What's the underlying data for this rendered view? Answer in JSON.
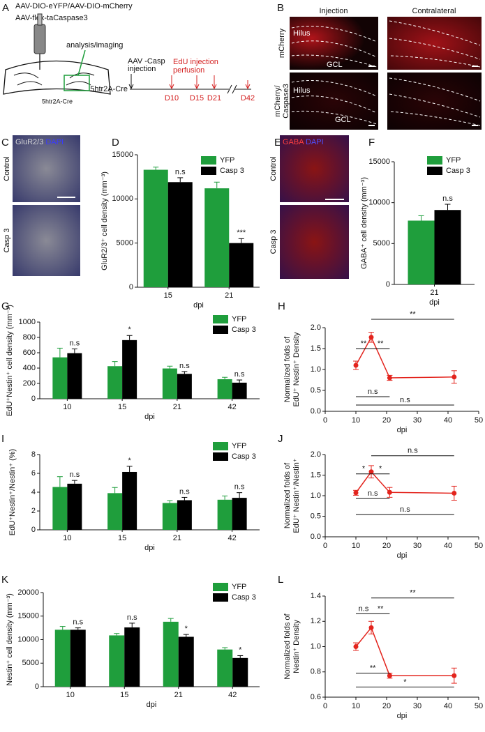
{
  "panel_a": {
    "label": "A",
    "vectors": [
      "AAV-DIO-eYFP/AAV-DIO-mCherry",
      "AAV-flex-taCaspase3"
    ],
    "imaging": "analysis/imaging",
    "mouse": "5htr2A-Cre",
    "timeline": {
      "mouse": "5htr2A-Cre",
      "start": [
        "AAV -Casp",
        "injection"
      ],
      "edu": [
        "EdU injection",
        "perfusion"
      ],
      "days": [
        "D10",
        "D15",
        "D21",
        "D42"
      ]
    }
  },
  "panel_b": {
    "label": "B",
    "columns": [
      "Injection",
      "Contralateral"
    ],
    "rows": [
      [
        "mCherry"
      ],
      [
        "mCherry/",
        "Caspase3"
      ]
    ],
    "regions": [
      "Hilus",
      "GCL"
    ]
  },
  "panel_c": {
    "label": "C",
    "stain": [
      "GluR2/3",
      "DAPI"
    ],
    "rows": [
      "Control",
      "Casp 3"
    ]
  },
  "panel_e": {
    "label": "E",
    "stain": [
      "GABA",
      "DAPI"
    ],
    "rows": [
      "Control",
      "Casp 3"
    ]
  },
  "chart_data": [
    {
      "type": "bar",
      "label": "D",
      "categories": [
        "15",
        "21"
      ],
      "series": [
        {
          "name": "YFP",
          "color": "#1f9e3c",
          "values": [
            13300,
            11200
          ],
          "errors": [
            300,
            700
          ]
        },
        {
          "name": "Casp 3",
          "color": "#000000",
          "values": [
            11900,
            5000
          ],
          "errors": [
            500,
            500
          ],
          "annotations": [
            "n.s",
            "***"
          ]
        }
      ],
      "ylim": [
        0,
        15000
      ],
      "yticks": [
        0,
        5000,
        10000,
        15000
      ],
      "ylabel": "GluR2/3⁺ cell density (mm⁻³)",
      "xlabel": "dpi",
      "legend": "upper right"
    },
    {
      "type": "bar",
      "label": "F",
      "categories": [
        "21"
      ],
      "series": [
        {
          "name": "YFP",
          "color": "#1f9e3c",
          "values": [
            7800
          ],
          "errors": [
            600
          ]
        },
        {
          "name": "Casp 3",
          "color": "#000000",
          "values": [
            9100
          ],
          "errors": [
            700
          ],
          "annotations": [
            "n.s"
          ]
        }
      ],
      "ylim": [
        0,
        15000
      ],
      "yticks": [
        0,
        5000,
        10000,
        15000
      ],
      "ylabel": "GABA⁺ cell density (mm⁻³)",
      "xlabel": "dpi",
      "legend": "upper right"
    },
    {
      "type": "bar",
      "label": "G",
      "categories": [
        "10",
        "15",
        "21",
        "42"
      ],
      "series": [
        {
          "name": "YFP",
          "color": "#1f9e3c",
          "values": [
            540,
            425,
            395,
            255
          ],
          "errors": [
            120,
            60,
            30,
            25
          ]
        },
        {
          "name": "Casp 3",
          "color": "#000000",
          "values": [
            595,
            765,
            325,
            210
          ],
          "errors": [
            55,
            60,
            30,
            35
          ],
          "annotations": [
            "n.s",
            "*",
            "n.s",
            "n.s"
          ]
        }
      ],
      "ylim": [
        0,
        1000
      ],
      "yticks": [
        0,
        200,
        400,
        600,
        800,
        1000
      ],
      "ylabel": "EdU⁺Nestin⁺ cell density (mm⁻³)",
      "xlabel": "dpi",
      "legend": "upper right"
    },
    {
      "type": "line",
      "label": "H",
      "x": [
        10,
        15,
        21,
        42
      ],
      "series": [
        {
          "color": "#e3241d",
          "values": [
            1.1,
            1.77,
            0.8,
            0.82
          ],
          "errors": [
            0.1,
            0.12,
            0.06,
            0.15
          ]
        }
      ],
      "xlim": [
        0,
        50
      ],
      "xticks": [
        0,
        10,
        20,
        30,
        40,
        50
      ],
      "ylim": [
        0,
        2
      ],
      "yticks": [
        {
          "value": 0,
          "label": "0.0"
        },
        0.5,
        {
          "value": 1,
          "label": "1.0"
        },
        1.5,
        {
          "value": 2,
          "label": "2.0"
        }
      ],
      "ylabel": [
        "Normalized folds of",
        "EdU⁺ Nestin⁺ Density"
      ],
      "xlabel": "dpi",
      "brackets": [
        {
          "label": "**",
          "x": [
            10,
            15
          ],
          "y": 1.5
        },
        {
          "label": "**",
          "x": [
            15,
            21
          ],
          "y": 1.5
        },
        {
          "label": "**",
          "x": [
            15,
            42
          ],
          "y": 2.2
        },
        {
          "label": "n.s",
          "x": [
            10,
            21
          ],
          "y": 0.35
        },
        {
          "label": "n.s",
          "x": [
            10,
            42
          ],
          "y": 0.15
        }
      ]
    },
    {
      "type": "bar",
      "label": "I",
      "categories": [
        "10",
        "15",
        "21",
        "42"
      ],
      "series": [
        {
          "name": "YFP",
          "color": "#1f9e3c",
          "values": [
            4.55,
            3.9,
            2.85,
            3.2
          ],
          "errors": [
            1.1,
            0.6,
            0.25,
            0.4
          ]
        },
        {
          "name": "Casp 3",
          "color": "#000000",
          "values": [
            4.9,
            6.15,
            3.15,
            3.4
          ],
          "errors": [
            0.35,
            0.6,
            0.3,
            0.55
          ],
          "annotations": [
            "n.s",
            "*",
            "n.s",
            "n.s"
          ]
        }
      ],
      "ylim": [
        0,
        8
      ],
      "yticks": [
        0,
        2,
        4,
        6,
        8
      ],
      "ylabel": "EdU⁺Nestin⁺/Nestin⁺ (%)",
      "xlabel": "dpi",
      "legend": "upper right"
    },
    {
      "type": "line",
      "label": "J",
      "x": [
        10,
        15,
        21,
        42
      ],
      "series": [
        {
          "color": "#e3241d",
          "values": [
            1.07,
            1.58,
            1.08,
            1.06
          ],
          "errors": [
            0.06,
            0.15,
            0.12,
            0.17
          ]
        }
      ],
      "xlim": [
        0,
        50
      ],
      "xticks": [
        0,
        10,
        20,
        30,
        40,
        50
      ],
      "ylim": [
        0,
        2
      ],
      "yticks": [
        {
          "value": 0,
          "label": "0.0"
        },
        0.5,
        {
          "value": 1,
          "label": "1.0"
        },
        1.5,
        {
          "value": 2,
          "label": "2.0"
        }
      ],
      "ylabel": [
        "Normalized folds of",
        "EdU⁺ Nestin⁺/Nestin⁺"
      ],
      "xlabel": "dpi",
      "brackets": [
        {
          "label": "*",
          "x": [
            10,
            15
          ],
          "y": 1.53
        },
        {
          "label": "*",
          "x": [
            15,
            21
          ],
          "y": 1.53
        },
        {
          "label": "n.s",
          "x": [
            15,
            42
          ],
          "y": 1.97
        },
        {
          "label": "n.s",
          "x": [
            10,
            21
          ],
          "y": 0.93
        },
        {
          "label": "n.s",
          "x": [
            10,
            42
          ],
          "y": 0.54
        }
      ]
    },
    {
      "type": "bar",
      "label": "K",
      "categories": [
        "10",
        "15",
        "21",
        "42"
      ],
      "series": [
        {
          "name": "YFP",
          "color": "#1f9e3c",
          "values": [
            12100,
            10900,
            13800,
            7900
          ],
          "errors": [
            700,
            400,
            700,
            400
          ]
        },
        {
          "name": "Casp 3",
          "color": "#000000",
          "values": [
            12100,
            12600,
            10600,
            6100
          ],
          "errors": [
            400,
            900,
            500,
            500
          ],
          "annotations": [
            "n.s",
            "n.s",
            "*",
            "*"
          ]
        }
      ],
      "ylim": [
        0,
        20000
      ],
      "yticks": [
        0,
        5000,
        10000,
        15000,
        20000
      ],
      "ylabel": "Nestin⁺ cell density (mm⁻³)",
      "xlabel": "dpi",
      "legend": "upper right"
    },
    {
      "type": "line",
      "label": "L",
      "x": [
        10,
        15,
        21,
        42
      ],
      "series": [
        {
          "color": "#e3241d",
          "values": [
            1.0,
            1.15,
            0.77,
            0.77
          ],
          "errors": [
            0.03,
            0.05,
            0.02,
            0.06
          ]
        }
      ],
      "xlim": [
        0,
        50
      ],
      "xticks": [
        0,
        10,
        20,
        30,
        40,
        50
      ],
      "ylim": [
        0.6,
        1.4
      ],
      "yticks": [
        0.6,
        0.8,
        {
          "value": 1,
          "label": "1.0"
        },
        1.2,
        1.4
      ],
      "ylabel": [
        "Normalized folds of",
        "Nestin⁺ Density"
      ],
      "xlabel": "dpi",
      "brackets": [
        {
          "label": "n.s",
          "x": [
            10,
            15
          ],
          "y": 1.26
        },
        {
          "label": "**",
          "x": [
            15,
            21
          ],
          "y": 1.26
        },
        {
          "label": "**",
          "x": [
            15,
            42
          ],
          "y": 1.385
        },
        {
          "label": "**",
          "x": [
            10,
            21
          ],
          "y": 0.79
        },
        {
          "label": "*",
          "x": [
            10,
            42
          ],
          "y": 0.68
        }
      ]
    }
  ]
}
